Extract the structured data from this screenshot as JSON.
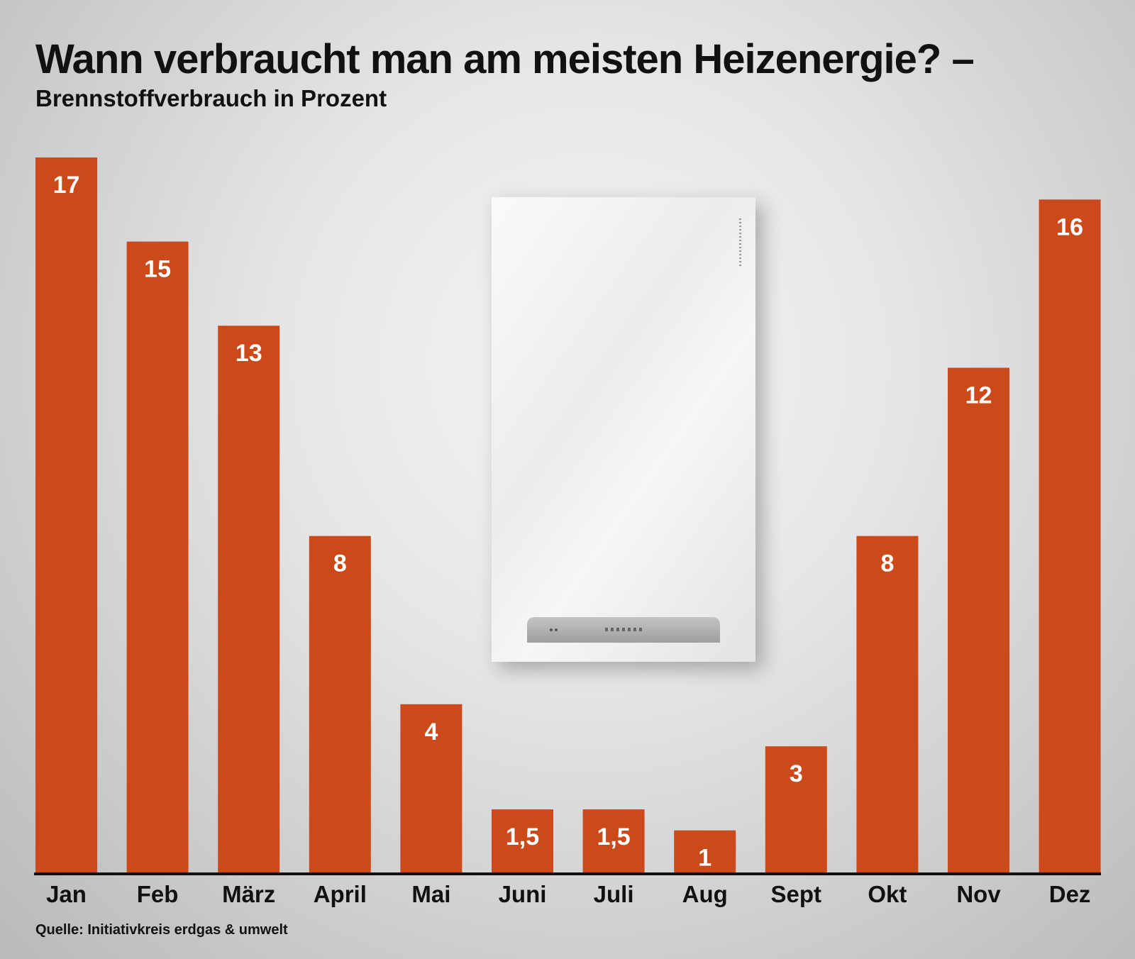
{
  "chart_data": {
    "type": "bar",
    "title": "Wann verbraucht man am meisten Heizenergie? –",
    "subtitle": "Brennstoffverbrauch in Prozent",
    "categories": [
      "Jan",
      "Feb",
      "März",
      "April",
      "Mai",
      "Juni",
      "Juli",
      "Aug",
      "Sept",
      "Okt",
      "Nov",
      "Dez"
    ],
    "values": [
      17,
      15,
      13,
      8,
      4,
      1.5,
      1.5,
      1,
      3,
      8,
      12,
      16
    ],
    "value_labels": [
      "17",
      "15",
      "13",
      "8",
      "4",
      "1,5",
      "1,5",
      "1",
      "3",
      "8",
      "12",
      "16"
    ],
    "ylim": [
      0,
      17
    ],
    "bar_color": "#cc4a1a",
    "label_color": "#ffffff",
    "grid": false,
    "source": "Quelle: Initiativkreis erdgas & umwelt"
  }
}
